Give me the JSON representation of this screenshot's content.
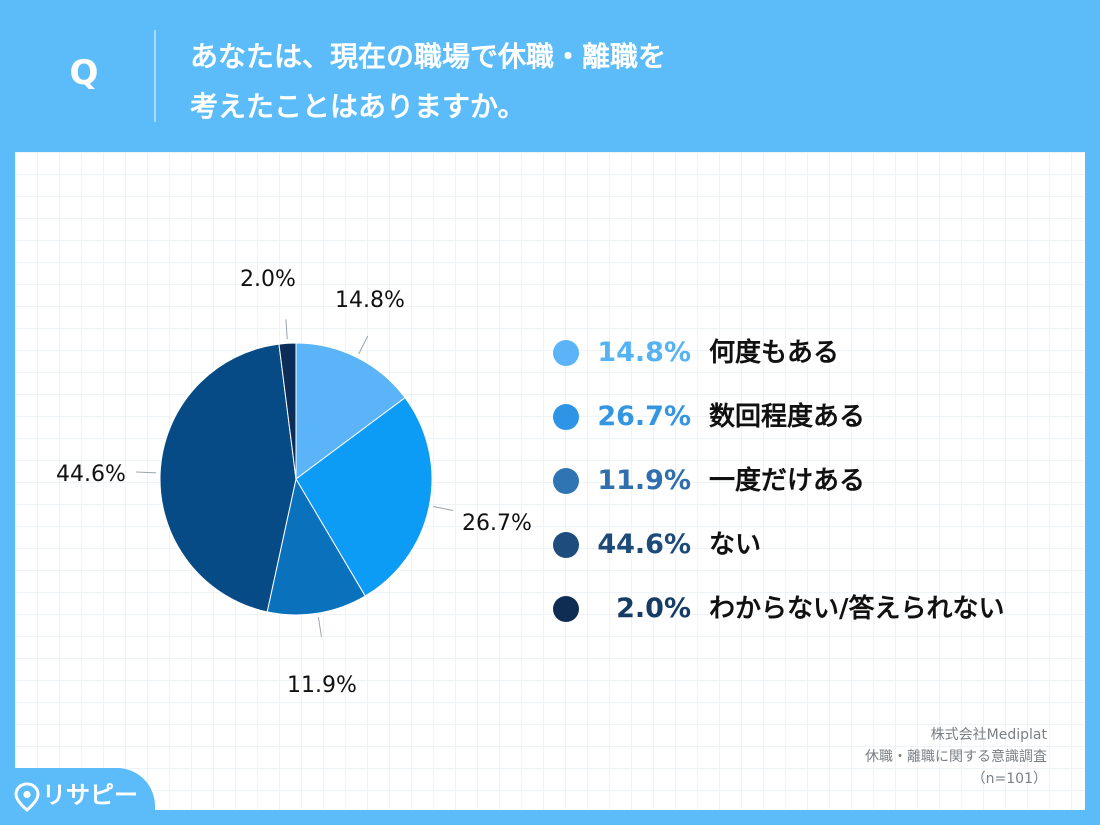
{
  "header": {
    "q_mark": "Q",
    "question_line1": "あなたは、現在の職場で休職・離職を",
    "question_line2": "考えたことはありますか。"
  },
  "chart_data": {
    "type": "pie",
    "categories": [
      "何度もある",
      "数回程度ある",
      "一度だけある",
      "ない",
      "わからない/答えられない"
    ],
    "values": [
      14.8,
      26.7,
      11.9,
      44.6,
      2.0
    ],
    "slice_labels": [
      "14.8%",
      "26.7%",
      "11.9%",
      "44.6%",
      "2.0%"
    ],
    "colors": [
      "#5ab4f7",
      "#0c9bf5",
      "#0a72bd",
      "#064a86",
      "#0b2d57"
    ],
    "legend_position": "right"
  },
  "legend": {
    "items": [
      {
        "pct": "14.8%",
        "label": "何度もある",
        "color": "#5ab4f7",
        "text_color": "#55b3f3"
      },
      {
        "pct": "26.7%",
        "label": "数回程度ある",
        "color": "#2e94e5",
        "text_color": "#3496e1"
      },
      {
        "pct": "11.9%",
        "label": "一度だけある",
        "color": "#2f74b3",
        "text_color": "#2f6fae"
      },
      {
        "pct": "44.6%",
        "label": "ない",
        "color": "#1e4c7c",
        "text_color": "#1d4a79"
      },
      {
        "pct": "2.0%",
        "label": "わからない/答えられない",
        "color": "#0f2d52",
        "text_color": "#163c66"
      }
    ]
  },
  "source": {
    "company": "株式会社Mediplat",
    "survey": "休職・離職に関する意識調査",
    "sample": "（n=101）"
  },
  "logo": {
    "text": "リサピー"
  },
  "colors": {
    "background": "#5bbcf9",
    "panel": "#ffffff"
  }
}
